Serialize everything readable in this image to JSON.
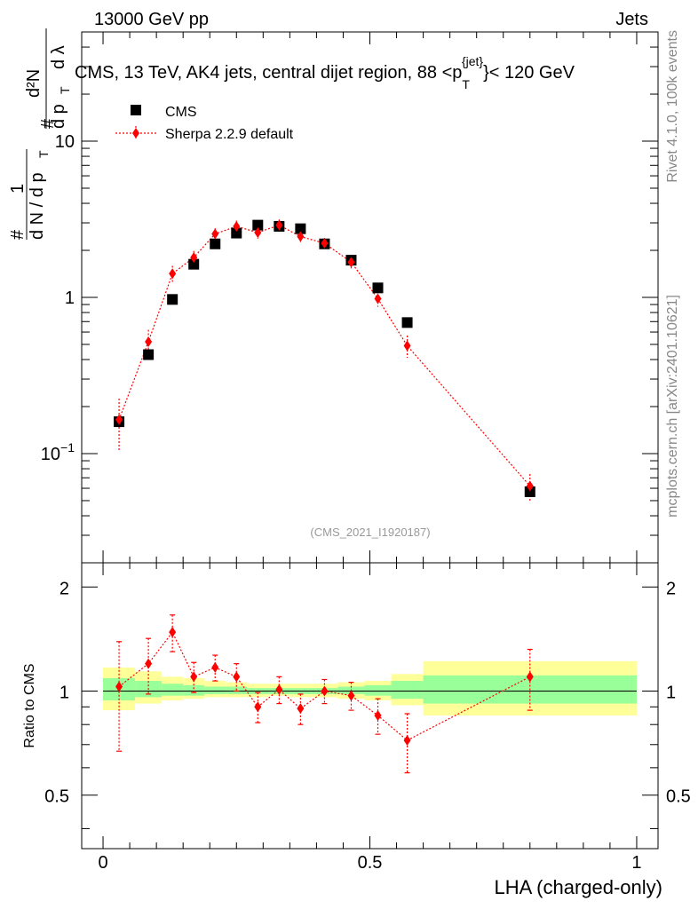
{
  "header": {
    "left": "13000 GeV pp",
    "right": "Jets"
  },
  "title_parts": {
    "main": "CMS, 13 TeV, AK4 jets, central dijet region, 88 <p",
    "sub": "T",
    "sup": "{jet}",
    "tail": "}< 120 GeV"
  },
  "side_text": {
    "rivet": "Rivet 4.1.0,  100k events",
    "mcplots": "mcplots.cern.ch [arXiv:2401.10621]"
  },
  "analysis_label": "(CMS_2021_I1920187)",
  "ylabel_top": {
    "hash1": "#",
    "one": "1",
    "dN": "d N / d p",
    "T1": "T",
    "hash2": "#",
    "d2N": "d²N",
    "dpt": "d p",
    "T2": "T",
    "dlambda": "d λ"
  },
  "colors": {
    "data": "#000000",
    "mc": "#ff0000",
    "band_inner": "#99ff99",
    "band_outer": "#ffff99"
  },
  "chart_data": [
    {
      "type": "scatter",
      "panel": "main",
      "title": "CMS, 13 TeV, AK4 jets, central dijet region, 88 <p_T^{jet}< 120 GeV",
      "xlabel": "LHA (charged-only)",
      "yscale": "log",
      "xlim": [
        -0.04,
        1.04
      ],
      "ylim": [
        0.02,
        50
      ],
      "y_ticks": [
        {
          "value": 0.1,
          "base": "10",
          "exp": "−1"
        },
        {
          "value": 1,
          "base": "1",
          "exp": ""
        },
        {
          "value": 10,
          "base": "10",
          "exp": ""
        }
      ],
      "legend": [
        "CMS",
        "Sherpa 2.2.9 default"
      ],
      "x": [
        0.03,
        0.085,
        0.13,
        0.17,
        0.21,
        0.25,
        0.29,
        0.33,
        0.37,
        0.415,
        0.465,
        0.515,
        0.57,
        0.8
      ],
      "series": [
        {
          "name": "CMS",
          "style": "marker-square",
          "values": [
            0.16,
            0.43,
            0.97,
            1.63,
            2.2,
            2.58,
            2.9,
            2.85,
            2.75,
            2.2,
            1.73,
            1.15,
            0.69,
            0.057
          ]
        },
        {
          "name": "Sherpa 2.2.9 default",
          "style": "diamond-dotted-line",
          "values": [
            0.165,
            0.52,
            1.42,
            1.8,
            2.55,
            2.85,
            2.6,
            2.9,
            2.45,
            2.22,
            1.68,
            0.98,
            0.49,
            0.062
          ],
          "err_low": [
            0.06,
            0.1,
            0.17,
            0.18,
            0.22,
            0.25,
            0.22,
            0.25,
            0.2,
            0.18,
            0.16,
            0.11,
            0.08,
            0.012
          ],
          "err_high": [
            0.06,
            0.1,
            0.17,
            0.18,
            0.22,
            0.25,
            0.22,
            0.25,
            0.2,
            0.18,
            0.16,
            0.11,
            0.08,
            0.012
          ]
        }
      ]
    },
    {
      "type": "scatter",
      "panel": "ratio",
      "ylabel": "Ratio to CMS",
      "xlabel": "LHA (charged-only)",
      "xlim": [
        -0.04,
        1.04
      ],
      "ylim": [
        0.35,
        2.35
      ],
      "y_ticks": [
        0.5,
        1,
        2
      ],
      "x_ticks": [
        0,
        0.5,
        1
      ],
      "x_tick_labels": [
        "0",
        "0.5",
        "1"
      ],
      "bands": [
        {
          "x0": 0.0,
          "x1": 0.06,
          "in_lo": 0.94,
          "in_hi": 1.09,
          "out_lo": 0.88,
          "out_hi": 1.17
        },
        {
          "x0": 0.06,
          "x1": 0.11,
          "in_lo": 0.96,
          "in_hi": 1.07,
          "out_lo": 0.92,
          "out_hi": 1.14
        },
        {
          "x0": 0.11,
          "x1": 0.15,
          "in_lo": 0.97,
          "in_hi": 1.05,
          "out_lo": 0.94,
          "out_hi": 1.1
        },
        {
          "x0": 0.15,
          "x1": 0.19,
          "in_lo": 0.97,
          "in_hi": 1.04,
          "out_lo": 0.95,
          "out_hi": 1.09
        },
        {
          "x0": 0.19,
          "x1": 0.23,
          "in_lo": 0.98,
          "in_hi": 1.03,
          "out_lo": 0.96,
          "out_hi": 1.07
        },
        {
          "x0": 0.23,
          "x1": 0.27,
          "in_lo": 0.98,
          "in_hi": 1.03,
          "out_lo": 0.96,
          "out_hi": 1.06
        },
        {
          "x0": 0.27,
          "x1": 0.31,
          "in_lo": 0.98,
          "in_hi": 1.02,
          "out_lo": 0.96,
          "out_hi": 1.05
        },
        {
          "x0": 0.31,
          "x1": 0.35,
          "in_lo": 0.98,
          "in_hi": 1.02,
          "out_lo": 0.97,
          "out_hi": 1.05
        },
        {
          "x0": 0.35,
          "x1": 0.39,
          "in_lo": 0.98,
          "in_hi": 1.02,
          "out_lo": 0.96,
          "out_hi": 1.05
        },
        {
          "x0": 0.39,
          "x1": 0.44,
          "in_lo": 0.98,
          "in_hi": 1.02,
          "out_lo": 0.96,
          "out_hi": 1.05
        },
        {
          "x0": 0.44,
          "x1": 0.49,
          "in_lo": 0.98,
          "in_hi": 1.03,
          "out_lo": 0.95,
          "out_hi": 1.06
        },
        {
          "x0": 0.49,
          "x1": 0.54,
          "in_lo": 0.97,
          "in_hi": 1.04,
          "out_lo": 0.94,
          "out_hi": 1.07
        },
        {
          "x0": 0.54,
          "x1": 0.6,
          "in_lo": 0.95,
          "in_hi": 1.07,
          "out_lo": 0.91,
          "out_hi": 1.12
        },
        {
          "x0": 0.6,
          "x1": 1.0,
          "in_lo": 0.92,
          "in_hi": 1.11,
          "out_lo": 0.85,
          "out_hi": 1.22
        }
      ],
      "x": [
        0.03,
        0.085,
        0.13,
        0.17,
        0.21,
        0.25,
        0.29,
        0.33,
        0.37,
        0.415,
        0.465,
        0.515,
        0.57,
        0.8
      ],
      "series": [
        {
          "name": "Sherpa 2.2.9 default",
          "values": [
            1.03,
            1.2,
            1.48,
            1.1,
            1.17,
            1.1,
            0.9,
            1.01,
            0.89,
            1.0,
            0.97,
            0.85,
            0.72,
            1.1
          ],
          "err_low": [
            0.36,
            0.22,
            0.18,
            0.11,
            0.1,
            0.1,
            0.09,
            0.09,
            0.09,
            0.08,
            0.09,
            0.1,
            0.14,
            0.22
          ],
          "err_high": [
            0.36,
            0.22,
            0.18,
            0.11,
            0.1,
            0.1,
            0.09,
            0.09,
            0.09,
            0.08,
            0.09,
            0.1,
            0.14,
            0.22
          ]
        }
      ]
    }
  ]
}
